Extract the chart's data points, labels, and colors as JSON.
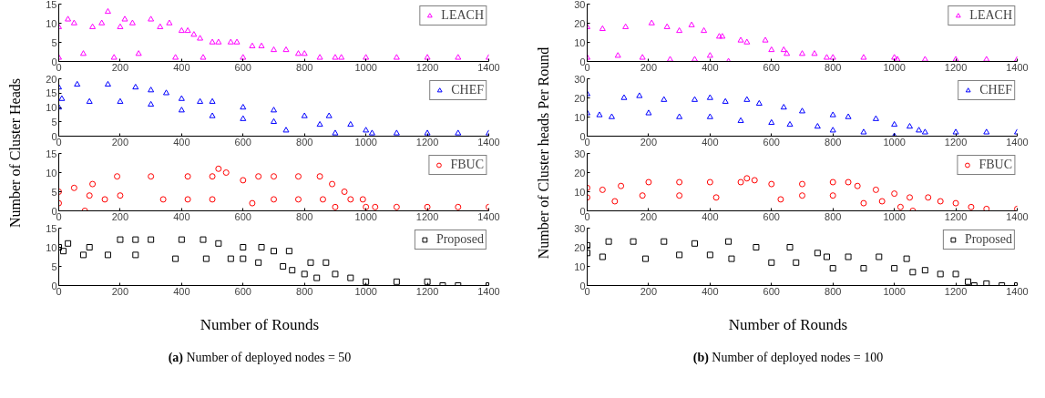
{
  "chart_data": [
    {
      "type": "scatter",
      "ylabel": "Number of Cluster Heads",
      "marker": "triangle",
      "legend": "top right",
      "xlim": [
        0,
        1400
      ],
      "xticks": [
        0,
        200,
        400,
        600,
        800,
        1000,
        1200,
        1400
      ],
      "ylim": [
        0,
        15
      ],
      "yticks": [
        0,
        5,
        10,
        15
      ],
      "series": [
        {
          "name": "LEACH",
          "color": "#ff00ff",
          "x": [
            0,
            0,
            30,
            50,
            80,
            110,
            140,
            160,
            180,
            200,
            215,
            240,
            260,
            300,
            330,
            360,
            380,
            400,
            420,
            440,
            460,
            470,
            500,
            520,
            560,
            580,
            600,
            630,
            660,
            700,
            740,
            780,
            800,
            850,
            900,
            920,
            1000,
            1100,
            1200,
            1300,
            1400
          ],
          "values": [
            9,
            1,
            11,
            10,
            2,
            9,
            10,
            13,
            1,
            9,
            11,
            10,
            2,
            11,
            9,
            10,
            1,
            8,
            8,
            7,
            6,
            1,
            5,
            5,
            5,
            5,
            1,
            4,
            4,
            3,
            3,
            2,
            2,
            1,
            1,
            1,
            1,
            1,
            1,
            1,
            1
          ]
        }
      ]
    },
    {
      "type": "scatter",
      "marker": "triangle",
      "legend": "top right",
      "xlim": [
        0,
        1400
      ],
      "xticks": [
        0,
        200,
        400,
        600,
        800,
        1000,
        1200,
        1400
      ],
      "ylim": [
        0,
        20
      ],
      "yticks": [
        0,
        5,
        10,
        15,
        20
      ],
      "series": [
        {
          "name": "CHEF",
          "color": "#0000ff",
          "x": [
            0,
            0,
            10,
            60,
            100,
            160,
            200,
            250,
            300,
            300,
            350,
            400,
            400,
            460,
            500,
            500,
            600,
            600,
            700,
            700,
            740,
            800,
            850,
            880,
            900,
            950,
            1000,
            1020,
            1100,
            1200,
            1300,
            1400
          ],
          "values": [
            17,
            10,
            13,
            18,
            12,
            18,
            12,
            17,
            16,
            11,
            15,
            13,
            9,
            12,
            12,
            7,
            10,
            6,
            9,
            5,
            2,
            7,
            4,
            7,
            1,
            4,
            2,
            1,
            1,
            1,
            1,
            1
          ]
        }
      ]
    },
    {
      "type": "scatter",
      "marker": "circle",
      "legend": "top right",
      "xlim": [
        0,
        1400
      ],
      "xticks": [
        0,
        200,
        400,
        600,
        800,
        1000,
        1200,
        1400
      ],
      "ylim": [
        0,
        15
      ],
      "yticks": [
        0,
        5,
        10,
        15
      ],
      "series": [
        {
          "name": "FBUC",
          "color": "#ff0000",
          "x": [
            0,
            0,
            50,
            85,
            100,
            110,
            150,
            190,
            200,
            300,
            340,
            420,
            420,
            500,
            520,
            545,
            500,
            600,
            630,
            650,
            700,
            700,
            780,
            780,
            850,
            860,
            890,
            900,
            930,
            950,
            990,
            1000,
            1030,
            1100,
            1200,
            1300,
            1400
          ],
          "values": [
            5,
            2,
            6,
            0,
            4,
            7,
            3,
            9,
            4,
            9,
            3,
            9,
            3,
            9,
            11,
            10,
            3,
            8,
            2,
            9,
            9,
            3,
            9,
            3,
            9,
            3,
            7,
            1,
            5,
            3,
            3,
            1,
            1,
            1,
            1,
            1,
            1
          ]
        }
      ]
    },
    {
      "type": "scatter",
      "marker": "square",
      "legend": "top right",
      "xlabel": "Number of Rounds",
      "annotations": [
        "(a) Number of deployed nodes = 50"
      ],
      "xlim": [
        0,
        1400
      ],
      "xticks": [
        0,
        200,
        400,
        600,
        800,
        1000,
        1200,
        1400
      ],
      "ylim": [
        0,
        15
      ],
      "yticks": [
        0,
        5,
        10,
        15
      ],
      "series": [
        {
          "name": "Proposed",
          "color": "#000000",
          "x": [
            0,
            15,
            30,
            80,
            100,
            160,
            200,
            250,
            250,
            300,
            380,
            400,
            470,
            480,
            520,
            560,
            600,
            600,
            650,
            660,
            700,
            730,
            750,
            760,
            800,
            820,
            840,
            870,
            900,
            950,
            1000,
            1100,
            1200,
            1250,
            1300,
            1400
          ],
          "values": [
            10,
            9,
            11,
            8,
            10,
            8,
            12,
            12,
            8,
            12,
            7,
            12,
            12,
            7,
            11,
            7,
            10,
            7,
            6,
            10,
            9,
            5,
            9,
            4,
            3,
            6,
            2,
            6,
            3,
            2,
            1,
            1,
            1,
            0,
            0,
            0
          ]
        }
      ]
    },
    {
      "type": "scatter",
      "ylabel": "Number of Cluster heads Per Round",
      "marker": "triangle",
      "legend": "top right",
      "xlim": [
        0,
        1400
      ],
      "xticks": [
        0,
        200,
        400,
        600,
        800,
        1000,
        1200,
        1400
      ],
      "ylim": [
        0,
        30
      ],
      "yticks": [
        0,
        10,
        20,
        30
      ],
      "series": [
        {
          "name": "LEACH",
          "color": "#ff00ff",
          "x": [
            0,
            0,
            50,
            100,
            125,
            180,
            210,
            260,
            270,
            300,
            340,
            350,
            380,
            400,
            430,
            440,
            460,
            500,
            520,
            580,
            600,
            640,
            650,
            700,
            740,
            780,
            800,
            900,
            1000,
            1010,
            1100,
            1200,
            1300,
            1400
          ],
          "values": [
            18,
            2,
            17,
            3,
            18,
            2,
            20,
            18,
            1,
            16,
            19,
            1,
            16,
            3,
            13,
            13,
            0,
            11,
            10,
            11,
            6,
            6,
            4,
            4,
            4,
            2,
            2,
            2,
            2,
            1,
            1,
            1,
            1,
            1
          ]
        }
      ]
    },
    {
      "type": "scatter",
      "marker": "triangle",
      "legend": "top right",
      "xlim": [
        0,
        1400
      ],
      "xticks": [
        0,
        200,
        400,
        600,
        800,
        1000,
        1200,
        1400
      ],
      "ylim": [
        0,
        30
      ],
      "yticks": [
        0,
        10,
        20,
        30
      ],
      "series": [
        {
          "name": "CHEF",
          "color": "#0000ff",
          "x": [
            0,
            0,
            40,
            80,
            120,
            170,
            200,
            250,
            300,
            350,
            400,
            400,
            450,
            500,
            520,
            560,
            600,
            640,
            660,
            700,
            750,
            800,
            800,
            850,
            900,
            940,
            1000,
            1000,
            1050,
            1080,
            1100,
            1200,
            1300,
            1400
          ],
          "values": [
            22,
            12,
            11,
            10,
            20,
            21,
            12,
            19,
            10,
            19,
            20,
            10,
            18,
            8,
            19,
            17,
            7,
            15,
            6,
            13,
            5,
            11,
            3,
            10,
            2,
            9,
            6,
            0,
            5,
            3,
            2,
            2,
            2,
            2
          ]
        }
      ]
    },
    {
      "type": "scatter",
      "marker": "circle",
      "legend": "top right",
      "xlim": [
        0,
        1400
      ],
      "xticks": [
        0,
        200,
        400,
        600,
        800,
        1000,
        1200,
        1400
      ],
      "ylim": [
        0,
        30
      ],
      "yticks": [
        0,
        10,
        20,
        30
      ],
      "series": [
        {
          "name": "FBUC",
          "color": "#ff0000",
          "x": [
            0,
            0,
            50,
            90,
            110,
            180,
            200,
            300,
            300,
            400,
            420,
            500,
            520,
            545,
            600,
            630,
            700,
            700,
            800,
            800,
            850,
            880,
            900,
            940,
            960,
            1000,
            1020,
            1050,
            1060,
            1110,
            1150,
            1200,
            1250,
            1300,
            1400
          ],
          "values": [
            12,
            7,
            11,
            5,
            13,
            8,
            15,
            15,
            8,
            15,
            7,
            15,
            17,
            16,
            14,
            6,
            14,
            8,
            15,
            8,
            15,
            13,
            4,
            11,
            5,
            9,
            2,
            7,
            0,
            7,
            5,
            4,
            2,
            1,
            1
          ]
        }
      ]
    },
    {
      "type": "scatter",
      "marker": "square",
      "legend": "top right",
      "xlabel": "Number of Rounds",
      "annotations": [
        "(b) Number of deployed nodes = 100"
      ],
      "xlim": [
        0,
        1400
      ],
      "xticks": [
        0,
        200,
        400,
        600,
        800,
        1000,
        1200,
        1400
      ],
      "ylim": [
        0,
        30
      ],
      "yticks": [
        0,
        10,
        20,
        30
      ],
      "series": [
        {
          "name": "Proposed",
          "color": "#000000",
          "x": [
            0,
            0,
            50,
            70,
            150,
            190,
            250,
            300,
            350,
            400,
            460,
            470,
            550,
            600,
            660,
            680,
            750,
            780,
            800,
            850,
            900,
            950,
            1000,
            1040,
            1060,
            1100,
            1150,
            1200,
            1240,
            1260,
            1300,
            1350,
            1400
          ],
          "values": [
            21,
            17,
            15,
            23,
            23,
            14,
            23,
            16,
            22,
            16,
            23,
            14,
            20,
            12,
            20,
            12,
            17,
            15,
            9,
            15,
            9,
            15,
            9,
            14,
            7,
            8,
            6,
            6,
            2,
            0,
            1,
            0,
            0
          ]
        }
      ]
    }
  ]
}
